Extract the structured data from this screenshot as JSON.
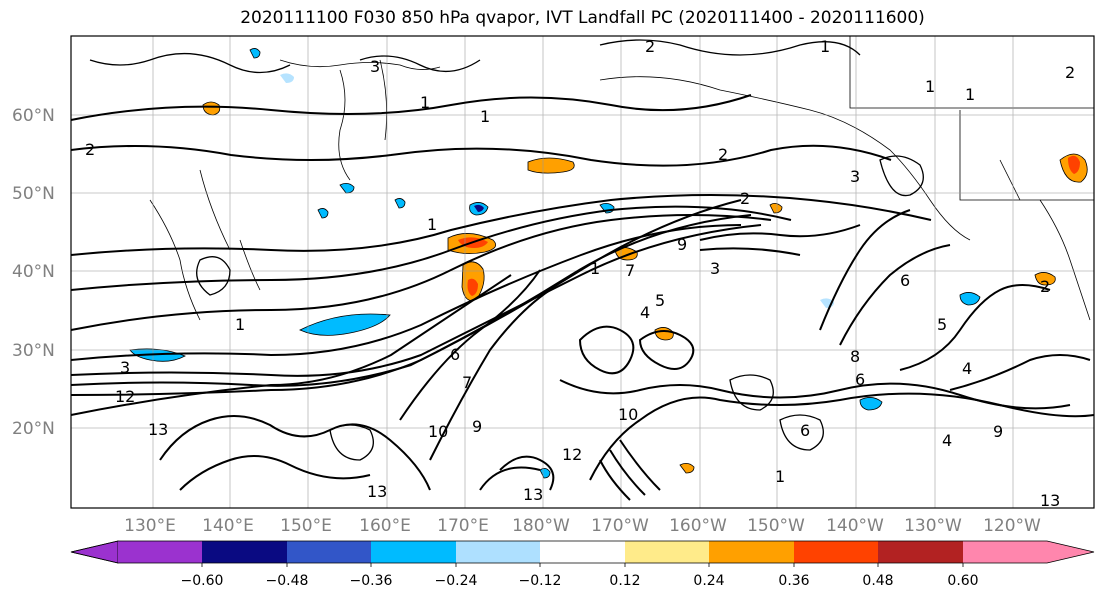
{
  "title": "2020111100 F030 850 hPa qvapor, IVT Landfall PC (2020111400 - 2020111600)",
  "map": {
    "lon_labels": [
      "130°E",
      "140°E",
      "150°E",
      "160°E",
      "170°E",
      "180°W",
      "170°W",
      "160°W",
      "150°W",
      "140°W",
      "130°W",
      "120°W"
    ],
    "lat_labels": [
      "60°N",
      "50°N",
      "40°N",
      "30°N",
      "20°N"
    ],
    "contour_labels": [
      "2",
      "1",
      "2",
      "3",
      "1",
      "2",
      "1",
      "2",
      "3",
      "1",
      "1",
      "2",
      "9",
      "1",
      "3",
      "5",
      "6",
      "5",
      "6",
      "4",
      "7",
      "4",
      "12",
      "3",
      "13",
      "10",
      "9",
      "7",
      "10",
      "12",
      "13",
      "13",
      "13",
      "9",
      "6",
      "8",
      "4",
      "6",
      "2",
      "1",
      "1",
      "1"
    ]
  },
  "colorbar": {
    "ticks": [
      "−0.60",
      "−0.48",
      "−0.36",
      "−0.24",
      "−0.12",
      "0.12",
      "0.24",
      "0.36",
      "0.48",
      "0.60"
    ],
    "colors": [
      "#9b32cf",
      "#0a0a82",
      "#3256c8",
      "#00bbff",
      "#aee0ff",
      "#ffffff",
      "#ffeb8a",
      "#ffa000",
      "#ff4200",
      "#b22222",
      "#ff86ad"
    ]
  }
}
